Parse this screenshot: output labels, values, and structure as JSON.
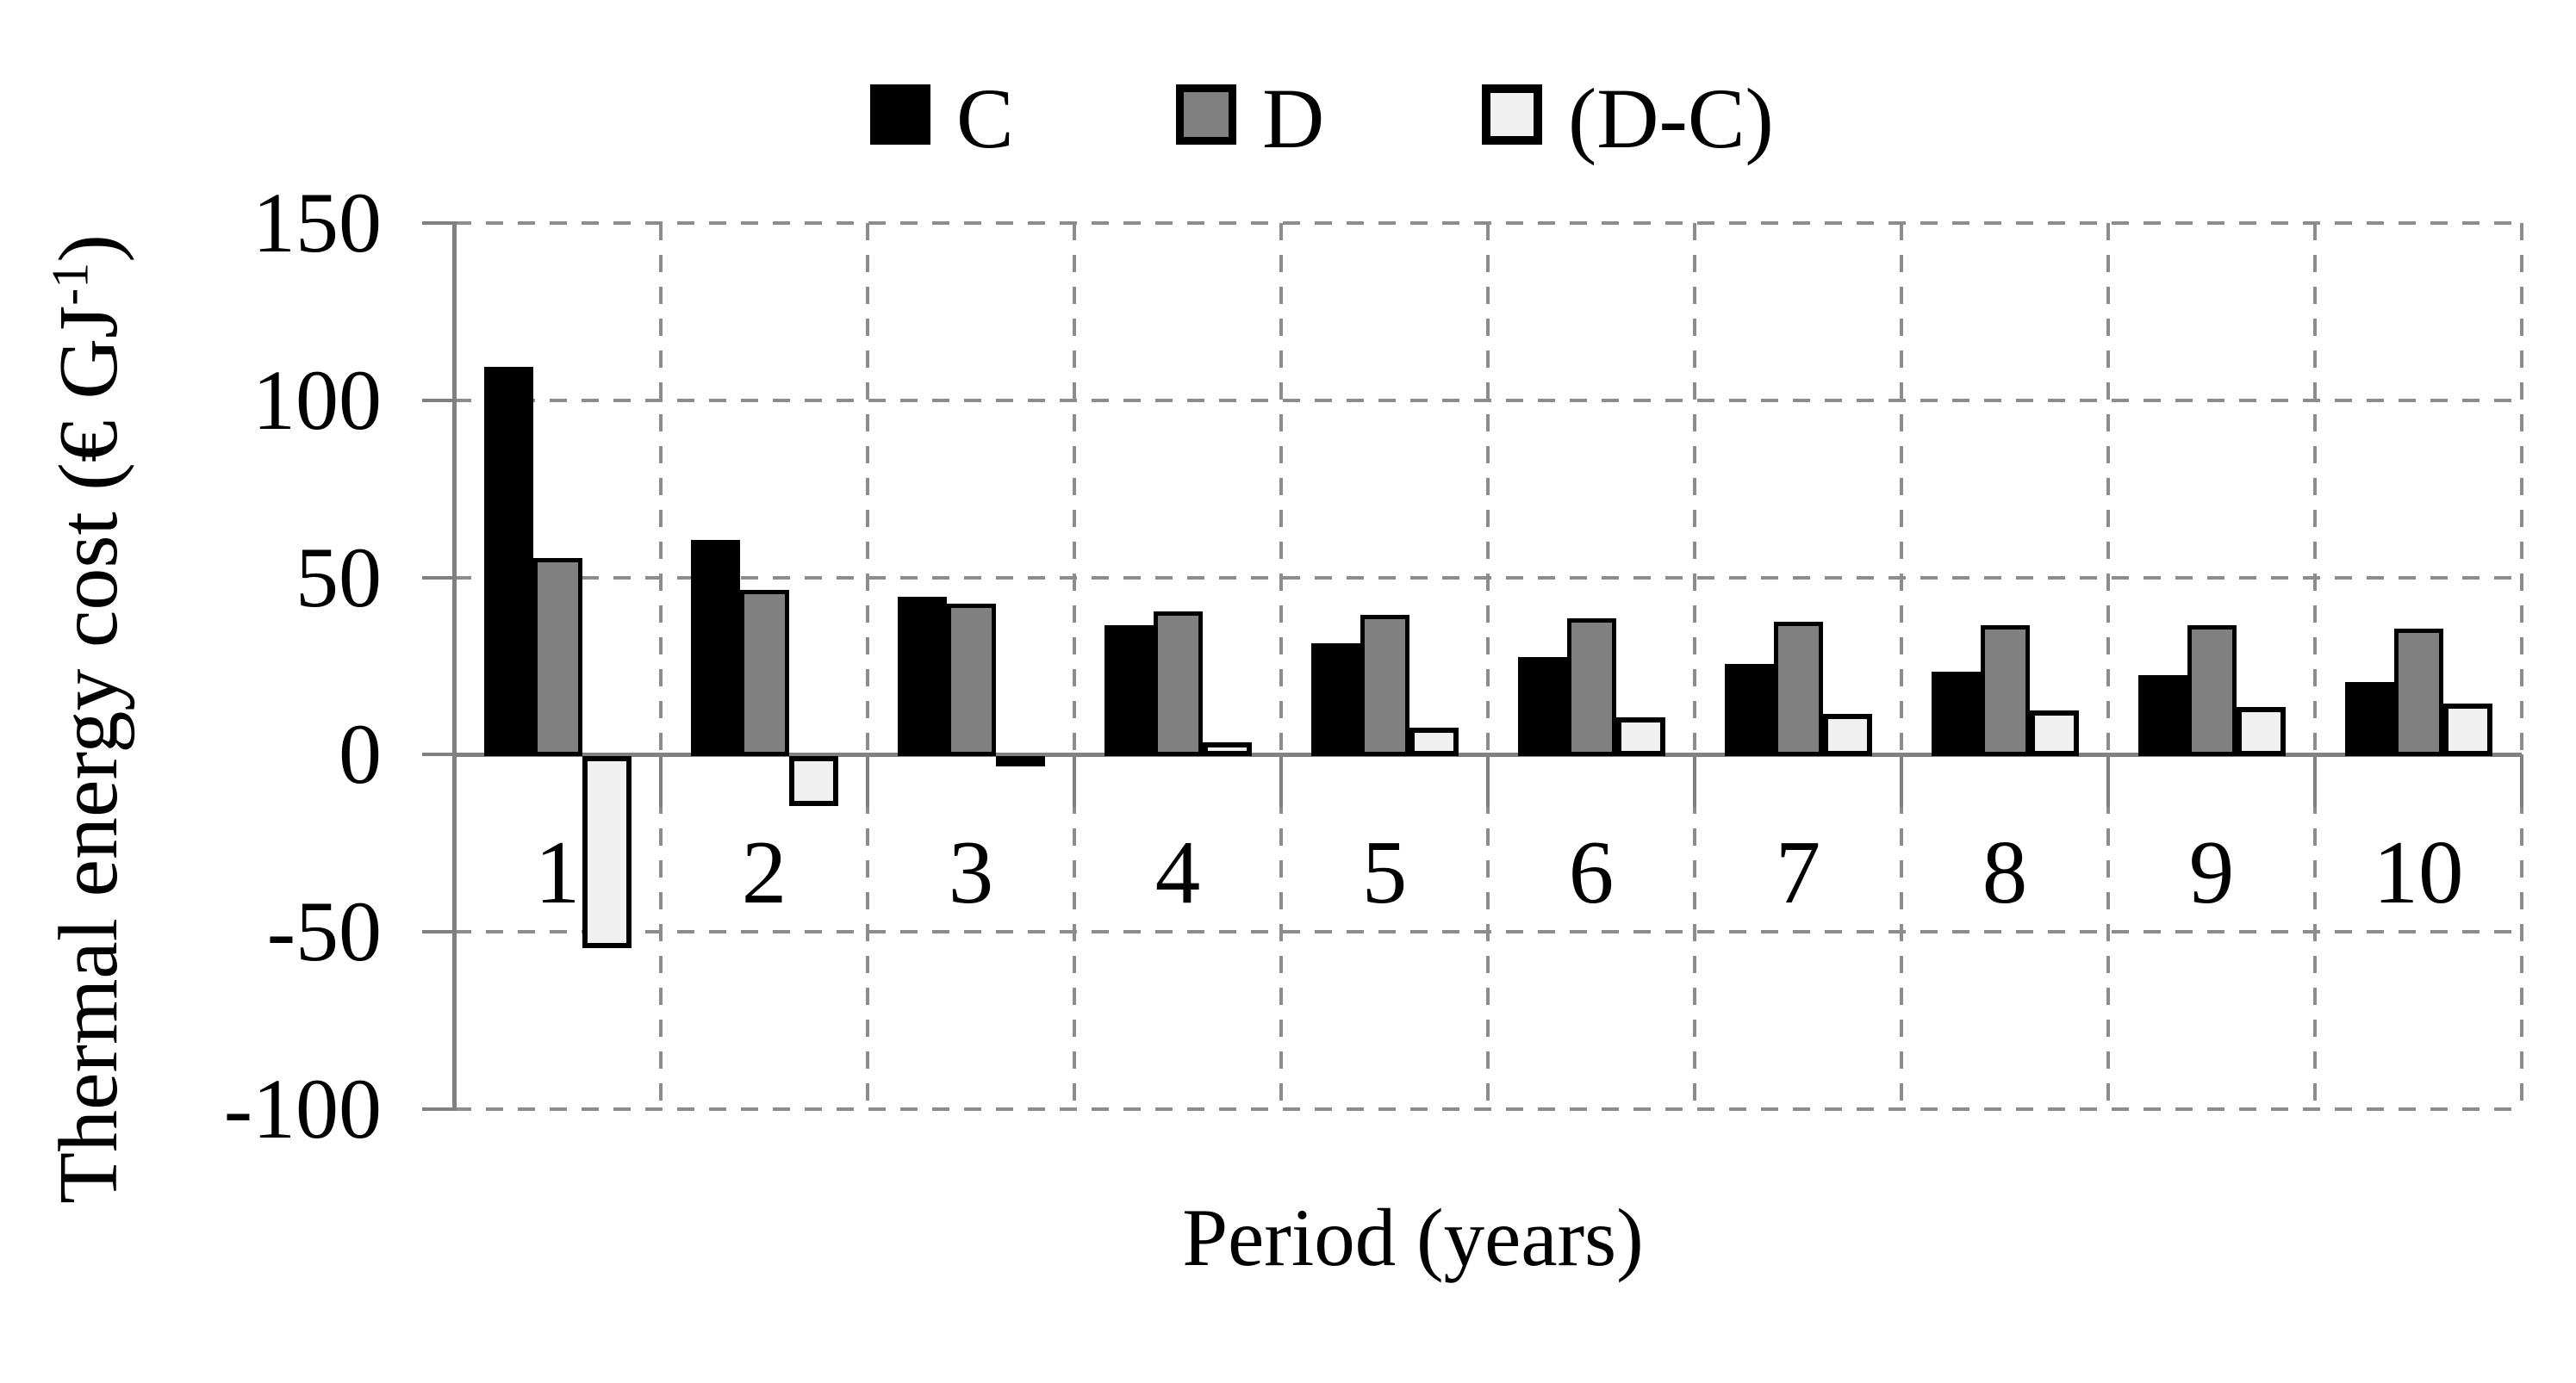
{
  "axes": {
    "y_title_main": "Thermal energy cost (€ GJ",
    "y_title_sup": "-1",
    "y_title_close": ")",
    "x_title": "Period (years)"
  },
  "chart_data": {
    "type": "bar",
    "title": "",
    "xlabel": "Period (years)",
    "ylabel": "Thermal energy cost (€ GJ-1)",
    "categories": [
      "1",
      "2",
      "3",
      "4",
      "5",
      "6",
      "7",
      "8",
      "9",
      "10"
    ],
    "series": [
      {
        "name": "C",
        "color": "#000000",
        "border_color": "#000000",
        "border_px": 4,
        "values": [
          110,
          61,
          45,
          37,
          32,
          28,
          26,
          24,
          23,
          21
        ]
      },
      {
        "name": "D",
        "color": "#808080",
        "border_color": "#000000",
        "border_px": 5,
        "values": [
          56,
          47,
          43,
          41,
          40,
          39,
          38,
          37,
          37,
          36
        ]
      },
      {
        "name": "(D-C)",
        "color": "#f0f0f0",
        "border_color": "#000000",
        "border_px": 6,
        "values": [
          -54,
          -14,
          -2,
          4,
          8,
          11,
          12,
          13,
          14,
          15
        ]
      }
    ],
    "ylim": [
      -100,
      150
    ],
    "ytick_step": 50,
    "yticks": [
      150,
      100,
      50,
      0,
      -50,
      -100
    ],
    "grid": "dashed",
    "gridline_color": "#8c8c8c",
    "axis_color": "#808080",
    "legend_position": "top"
  }
}
